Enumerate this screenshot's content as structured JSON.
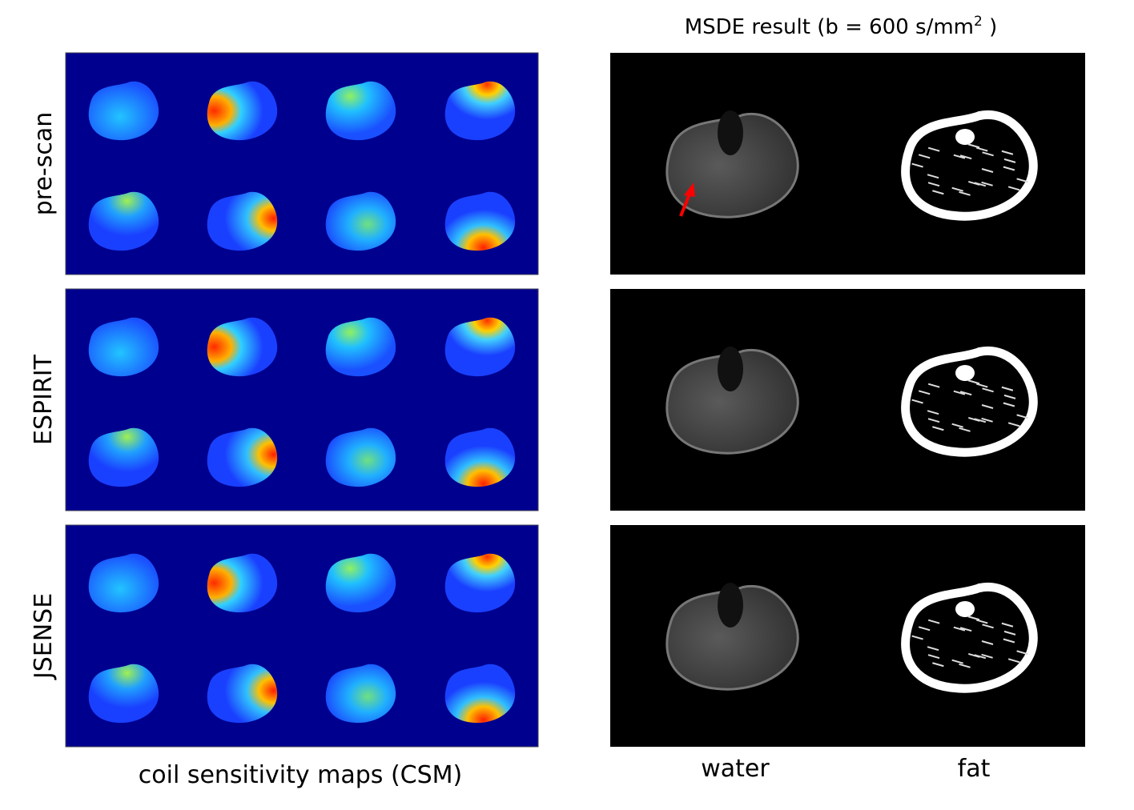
{
  "title": {
    "before": "MSDE result (b = 600 s/mm",
    "sup": "2",
    "after": " )"
  },
  "rows": [
    "pre-scan",
    "ESPIRIT",
    "JSENSE"
  ],
  "captions": {
    "left": "coil sensitivity maps (CSM)",
    "water": "water",
    "fat": "fat"
  }
}
